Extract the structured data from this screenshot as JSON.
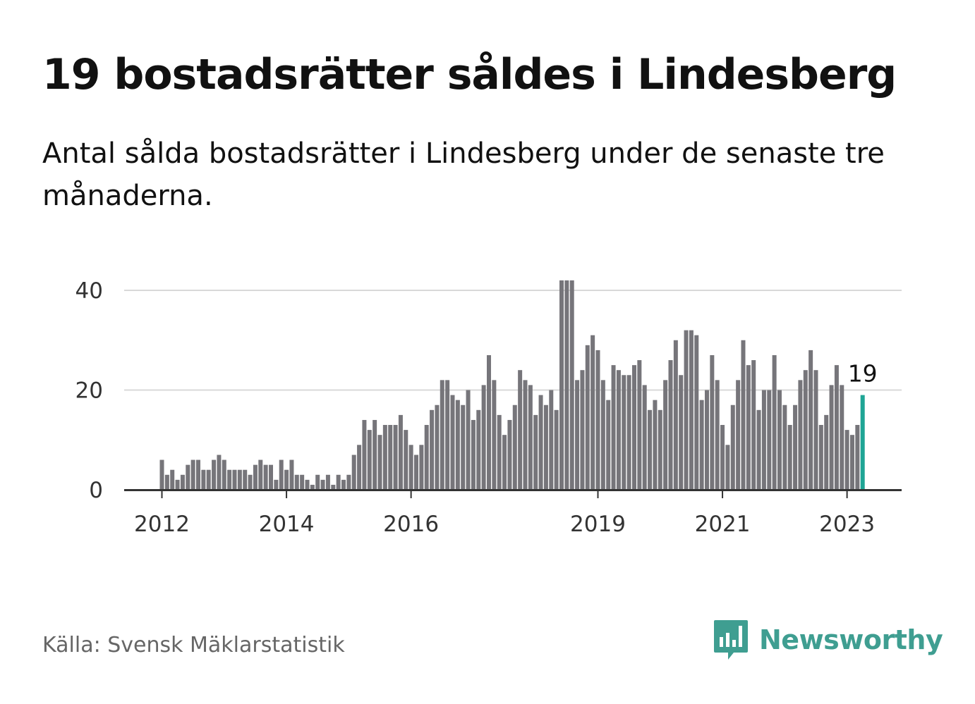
{
  "title": "19 bostadsrätter såldes i Lindesberg",
  "subtitle": "Antal sålda bostadsrätter i Lindesberg under de senaste tre månaderna.",
  "source": "Källa: Svensk Mäklarstatistik",
  "brand": {
    "name": "Newsworthy",
    "icon": "newsworthy-logo-icon",
    "color": "#3f9e91"
  },
  "colors": {
    "bars": "#76757a",
    "highlight": "#1fa595",
    "grid": "#d8d8d8",
    "axis": "#333333"
  },
  "chart_data": {
    "type": "bar",
    "title": "19 bostadsrätter såldes i Lindesberg",
    "subtitle": "Antal sålda bostadsrätter i Lindesberg under de senaste tre månaderna.",
    "x_start": "2012-01",
    "x_frequency": "monthly",
    "xlabel": "",
    "ylabel": "",
    "ylim": [
      0,
      40
    ],
    "grid": true,
    "yticks": [
      0,
      20,
      40
    ],
    "xticks": [
      {
        "label": "2012",
        "value": "2012-01"
      },
      {
        "label": "2014",
        "value": "2014-01"
      },
      {
        "label": "2016",
        "value": "2016-01"
      },
      {
        "label": "2019",
        "value": "2019-01"
      },
      {
        "label": "2021",
        "value": "2021-01"
      },
      {
        "label": "2023",
        "value": "2023-01"
      }
    ],
    "values": [
      6,
      3,
      4,
      2,
      3,
      5,
      6,
      6,
      4,
      4,
      6,
      7,
      6,
      4,
      4,
      4,
      4,
      3,
      5,
      6,
      5,
      5,
      2,
      6,
      4,
      6,
      3,
      3,
      2,
      1,
      3,
      2,
      3,
      1,
      3,
      2,
      3,
      7,
      9,
      14,
      12,
      14,
      11,
      13,
      13,
      13,
      15,
      12,
      9,
      7,
      9,
      13,
      16,
      17,
      22,
      22,
      19,
      18,
      17,
      20,
      14,
      16,
      21,
      27,
      22,
      15,
      11,
      14,
      17,
      24,
      22,
      21,
      15,
      19,
      17,
      20,
      16,
      42,
      42,
      42,
      22,
      24,
      29,
      31,
      28,
      22,
      18,
      25,
      24,
      23,
      23,
      25,
      26,
      21,
      16,
      18,
      16,
      22,
      26,
      30,
      23,
      32,
      32,
      31,
      18,
      20,
      27,
      22,
      13,
      9,
      17,
      22,
      30,
      25,
      26,
      16,
      20,
      20,
      27,
      20,
      17,
      13,
      17,
      22,
      24,
      28,
      24,
      13,
      15,
      21,
      25,
      21,
      12,
      11,
      13,
      19
    ],
    "highlight": {
      "value": 19,
      "label": "19"
    }
  }
}
